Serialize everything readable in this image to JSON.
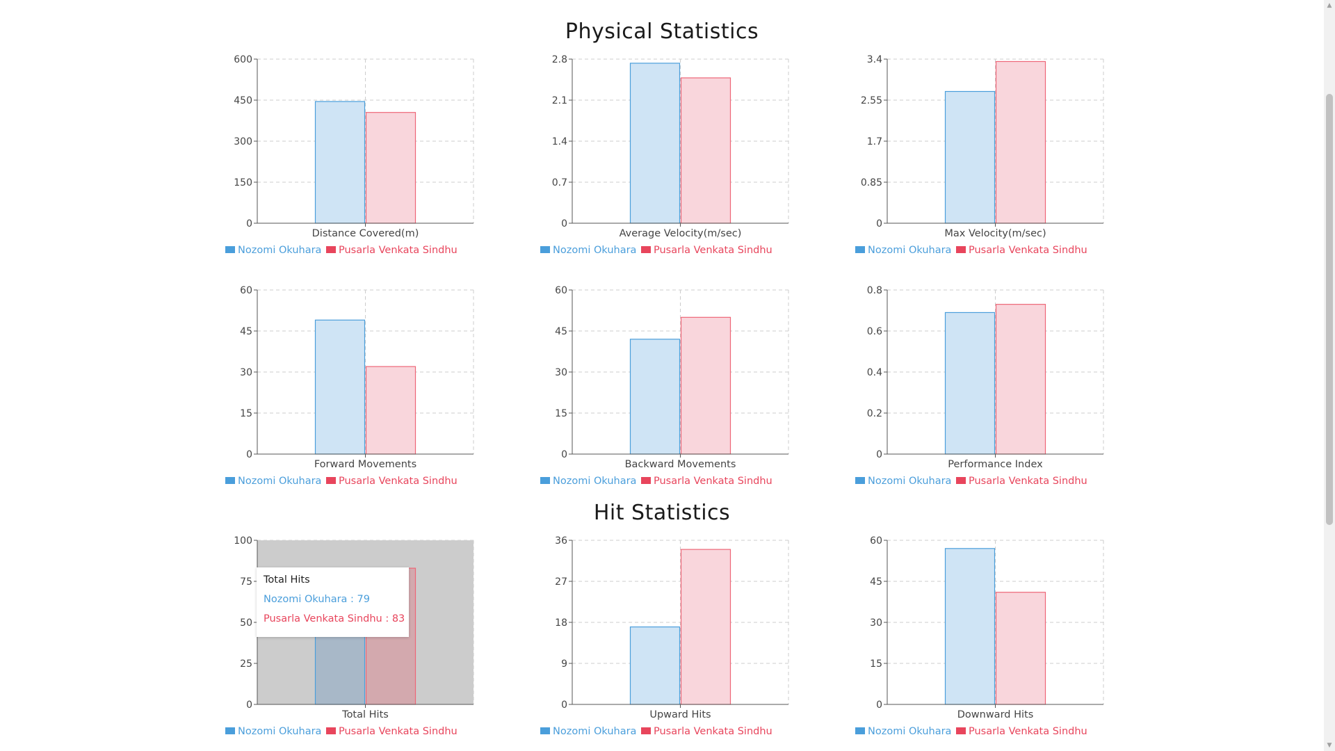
{
  "sections": {
    "physical_title": "Physical Statistics",
    "hit_title": "Hit Statistics"
  },
  "legend": {
    "series1": "Nozomi Okuhara",
    "series2": "Pusarla Venkata Sindhu"
  },
  "colors": {
    "series1_fill": "#cfe4f5",
    "series1_stroke": "#4a9edb",
    "series1_text": "#4a9edb",
    "series2_fill": "#f9d6dc",
    "series2_stroke": "#ee6677",
    "series2_text": "#e8455c",
    "grid": "#cccccc",
    "axis": "#555555"
  },
  "tooltip": {
    "title": "Total Hits",
    "line1": "Nozomi Okuhara : 79",
    "line2": "Pusarla Venkata Sindhu : 83"
  },
  "chart_data": [
    {
      "type": "bar",
      "xlabel": "Distance Covered(m)",
      "ticks": [
        "0",
        "150",
        "300",
        "450",
        "600"
      ],
      "ylim": [
        0,
        600
      ],
      "series": [
        {
          "name": "Nozomi Okuhara",
          "values": [
            445
          ]
        },
        {
          "name": "Pusarla Venkata Sindhu",
          "values": [
            405
          ]
        }
      ],
      "grid": true,
      "legend": "bottom-left"
    },
    {
      "type": "bar",
      "xlabel": "Average Velocity(m/sec)",
      "ticks": [
        "0",
        "0.7",
        "1.4",
        "2.1",
        "2.8"
      ],
      "ylim": [
        0,
        2.8
      ],
      "series": [
        {
          "name": "Nozomi Okuhara",
          "values": [
            2.73
          ]
        },
        {
          "name": "Pusarla Venkata Sindhu",
          "values": [
            2.48
          ]
        }
      ],
      "grid": true,
      "legend": "bottom-left"
    },
    {
      "type": "bar",
      "xlabel": "Max Velocity(m/sec)",
      "ticks": [
        "0",
        "0.85",
        "1.7",
        "2.55",
        "3.4"
      ],
      "ylim": [
        0,
        3.4
      ],
      "series": [
        {
          "name": "Nozomi Okuhara",
          "values": [
            2.73
          ]
        },
        {
          "name": "Pusarla Venkata Sindhu",
          "values": [
            3.35
          ]
        }
      ],
      "grid": true,
      "legend": "bottom-left"
    },
    {
      "type": "bar",
      "xlabel": "Forward Movements",
      "ticks": [
        "0",
        "15",
        "30",
        "45",
        "60"
      ],
      "ylim": [
        0,
        60
      ],
      "series": [
        {
          "name": "Nozomi Okuhara",
          "values": [
            49
          ]
        },
        {
          "name": "Pusarla Venkata Sindhu",
          "values": [
            32
          ]
        }
      ],
      "grid": true,
      "legend": "bottom-left"
    },
    {
      "type": "bar",
      "xlabel": "Backward Movements",
      "ticks": [
        "0",
        "15",
        "30",
        "45",
        "60"
      ],
      "ylim": [
        0,
        60
      ],
      "series": [
        {
          "name": "Nozomi Okuhara",
          "values": [
            42
          ]
        },
        {
          "name": "Pusarla Venkata Sindhu",
          "values": [
            50
          ]
        }
      ],
      "grid": true,
      "legend": "bottom-left"
    },
    {
      "type": "bar",
      "xlabel": "Performance Index",
      "ticks": [
        "0",
        "0.2",
        "0.4",
        "0.6",
        "0.8"
      ],
      "ylim": [
        0,
        0.8
      ],
      "series": [
        {
          "name": "Nozomi Okuhara",
          "values": [
            0.69
          ]
        },
        {
          "name": "Pusarla Venkata Sindhu",
          "values": [
            0.73
          ]
        }
      ],
      "grid": true,
      "legend": "bottom-left"
    },
    {
      "type": "bar",
      "xlabel": "Total Hits",
      "ticks": [
        "0",
        "25",
        "50",
        "75",
        "100"
      ],
      "ylim": [
        0,
        100
      ],
      "series": [
        {
          "name": "Nozomi Okuhara",
          "values": [
            79
          ]
        },
        {
          "name": "Pusarla Venkata Sindhu",
          "values": [
            83
          ]
        }
      ],
      "grid": true,
      "legend": "bottom-left",
      "hovered": true
    },
    {
      "type": "bar",
      "xlabel": "Upward Hits",
      "ticks": [
        "0",
        "9",
        "18",
        "27",
        "36"
      ],
      "ylim": [
        0,
        36
      ],
      "series": [
        {
          "name": "Nozomi Okuhara",
          "values": [
            17
          ]
        },
        {
          "name": "Pusarla Venkata Sindhu",
          "values": [
            34
          ]
        }
      ],
      "grid": true,
      "legend": "bottom-left"
    },
    {
      "type": "bar",
      "xlabel": "Downward Hits",
      "ticks": [
        "0",
        "15",
        "30",
        "45",
        "60"
      ],
      "ylim": [
        0,
        60
      ],
      "series": [
        {
          "name": "Nozomi Okuhara",
          "values": [
            57
          ]
        },
        {
          "name": "Pusarla Venkata Sindhu",
          "values": [
            41
          ]
        }
      ],
      "grid": true,
      "legend": "bottom-left"
    }
  ]
}
